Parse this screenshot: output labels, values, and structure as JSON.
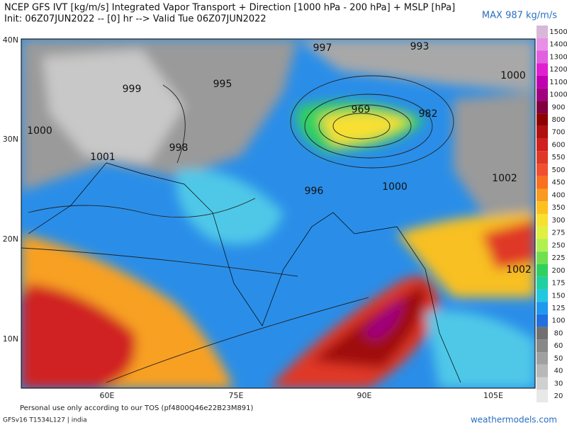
{
  "header": {
    "title": "NCEP GFS IVT [kg/m/s] Integrated Vapor Transport + Direction [1000 hPa - 200 hPa] + MSLP [hPa]",
    "subtitle": "Init: 06Z07JUN2022 -- [0] hr --> Valid Tue 06Z07JUN2022",
    "max": "MAX 987 kg/m/s"
  },
  "map": {
    "lat_labels": [
      "40N",
      "30N",
      "20N",
      "10N"
    ],
    "lon_labels": [
      "60E",
      "75E",
      "90E",
      "105E"
    ],
    "pressure_labels": [
      "997",
      "993",
      "999",
      "995",
      "1000",
      "969",
      "982",
      "1000",
      "998",
      "1001",
      "996",
      "1000",
      "1002",
      "1002"
    ]
  },
  "legend": [
    {
      "label": "1500",
      "color": "#d8b8d8"
    },
    {
      "label": "1400",
      "color": "#e890e8"
    },
    {
      "label": "1300",
      "color": "#e060e0"
    },
    {
      "label": "1200",
      "color": "#e020d0"
    },
    {
      "label": "1100",
      "color": "#c000b0"
    },
    {
      "label": "1000",
      "color": "#a00080"
    },
    {
      "label": "900",
      "color": "#800040"
    },
    {
      "label": "800",
      "color": "#900000"
    },
    {
      "label": "700",
      "color": "#b01010"
    },
    {
      "label": "600",
      "color": "#d02020"
    },
    {
      "label": "550",
      "color": "#e03828"
    },
    {
      "label": "500",
      "color": "#f05030"
    },
    {
      "label": "450",
      "color": "#f87020"
    },
    {
      "label": "400",
      "color": "#fa9a20"
    },
    {
      "label": "350",
      "color": "#fcc020"
    },
    {
      "label": "300",
      "color": "#f8e030"
    },
    {
      "label": "275",
      "color": "#e0f040"
    },
    {
      "label": "250",
      "color": "#b0f050"
    },
    {
      "label": "225",
      "color": "#70e050"
    },
    {
      "label": "200",
      "color": "#30d060"
    },
    {
      "label": "175",
      "color": "#20d0a0"
    },
    {
      "label": "150",
      "color": "#20c8e0"
    },
    {
      "label": "125",
      "color": "#2098f0"
    },
    {
      "label": "100",
      "color": "#2070e0"
    },
    {
      "label": "80",
      "color": "#707070"
    },
    {
      "label": "60",
      "color": "#888888"
    },
    {
      "label": "50",
      "color": "#a0a0a0"
    },
    {
      "label": "40",
      "color": "#b8b8b8"
    },
    {
      "label": "30",
      "color": "#d0d0d0"
    },
    {
      "label": "20",
      "color": "#e8e8e8"
    }
  ],
  "footer": {
    "tos": "Personal use only according to our TOS (pf4800Q46e22B23M891)",
    "model": "GFSv16 T1534L127 | india",
    "site": "weathermodels.com"
  }
}
